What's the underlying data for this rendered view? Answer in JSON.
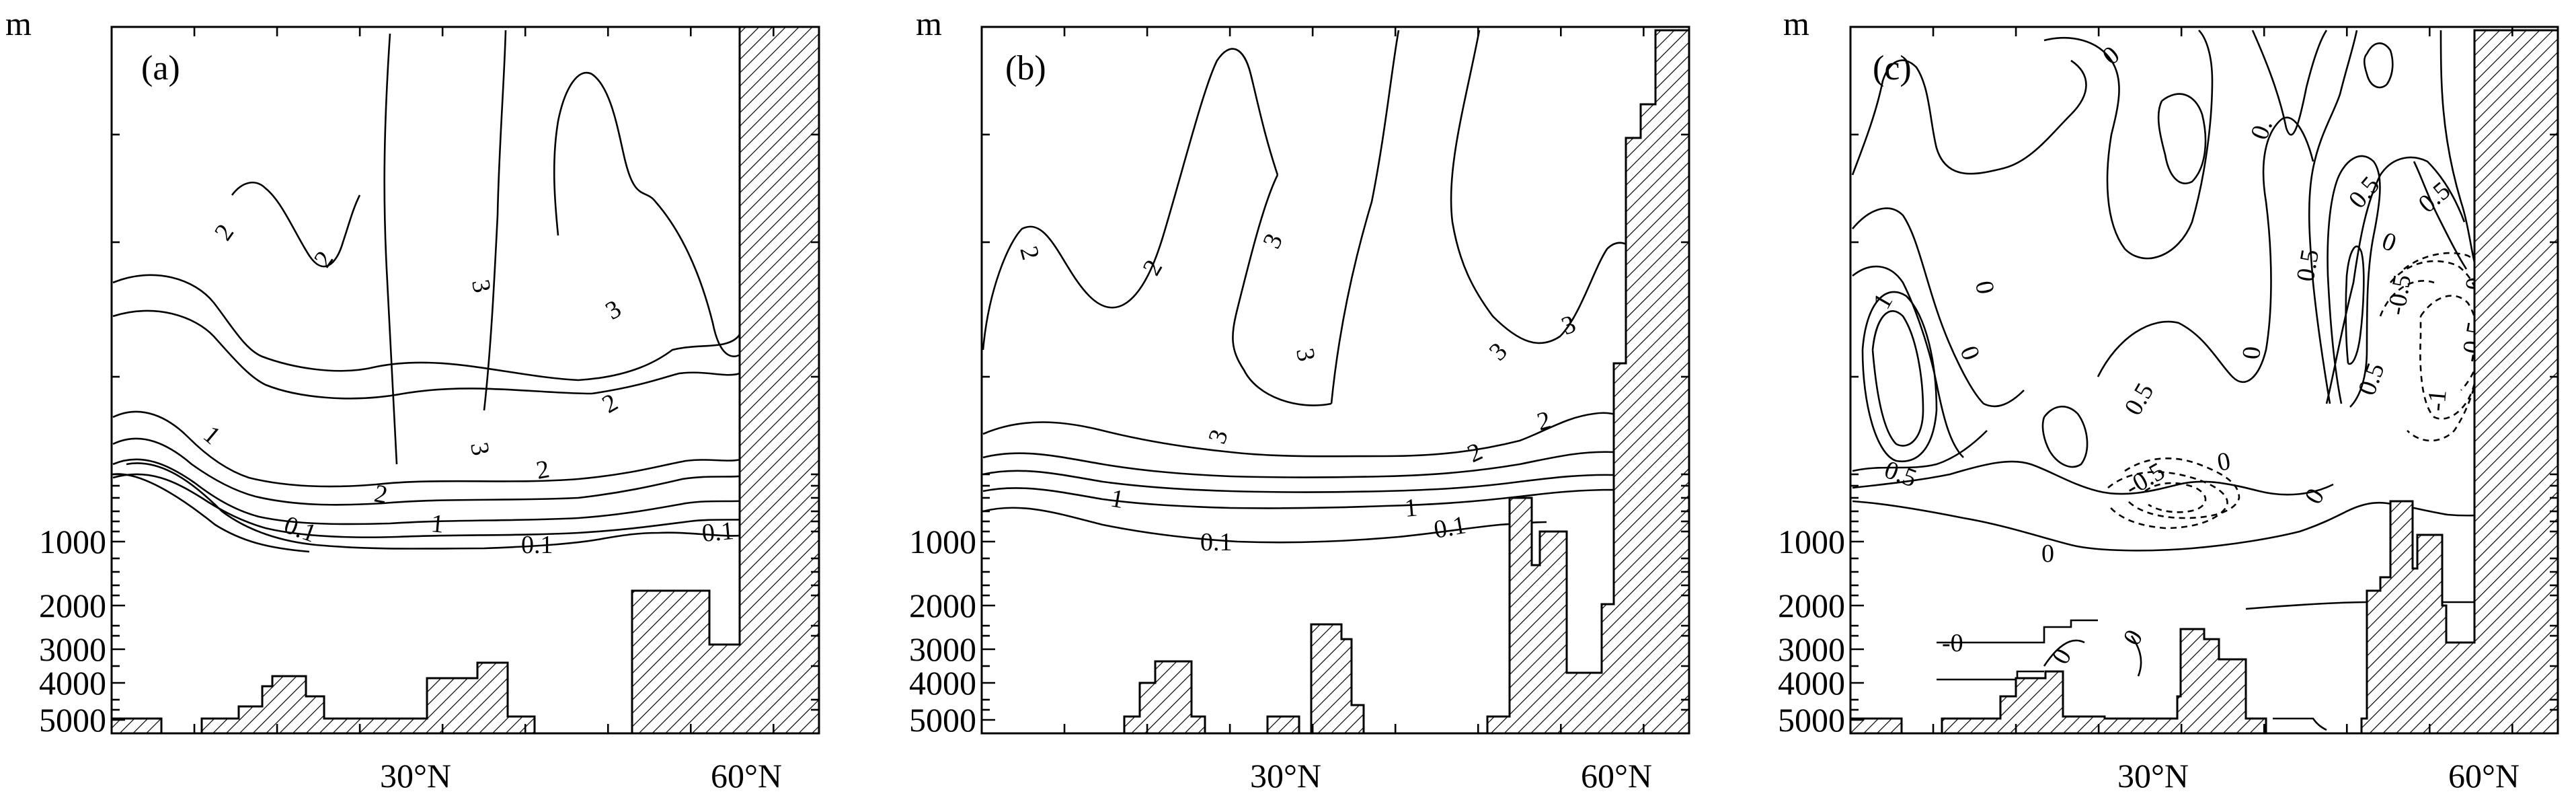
{
  "chart_data": [
    {
      "type": "contour",
      "panel_label": "(a)",
      "ylabel": "m",
      "y_ticks": [
        "1000",
        "2000",
        "3000",
        "4000",
        "5000"
      ],
      "x_ticks": [
        "30°N",
        "60°N"
      ],
      "contour_labels": [
        {
          "text": "2"
        },
        {
          "text": "2"
        },
        {
          "text": "3"
        },
        {
          "text": "3"
        },
        {
          "text": "3"
        },
        {
          "text": "1"
        },
        {
          "text": "2"
        },
        {
          "text": "2"
        },
        {
          "text": "2"
        },
        {
          "text": "1"
        },
        {
          "text": "0.1"
        },
        {
          "text": "0.1"
        },
        {
          "text": "0.1"
        }
      ]
    },
    {
      "type": "contour",
      "panel_label": "(b)",
      "ylabel": "m",
      "y_ticks": [
        "1000",
        "2000",
        "3000",
        "4000",
        "5000"
      ],
      "x_ticks": [
        "30°N",
        "60°N"
      ],
      "contour_labels": [
        {
          "text": "2"
        },
        {
          "text": "2"
        },
        {
          "text": "3"
        },
        {
          "text": "3"
        },
        {
          "text": "3"
        },
        {
          "text": "3"
        },
        {
          "text": "3"
        },
        {
          "text": "2"
        },
        {
          "text": "2"
        },
        {
          "text": "1"
        },
        {
          "text": "1"
        },
        {
          "text": "0.1"
        },
        {
          "text": "0.1"
        }
      ]
    },
    {
      "type": "contour",
      "panel_label": "(c)",
      "ylabel": "m",
      "y_ticks": [
        "1000",
        "2000",
        "3000",
        "4000",
        "5000"
      ],
      "x_ticks": [
        "30°N",
        "60°N"
      ],
      "contour_labels": [
        {
          "text": "0"
        },
        {
          "text": "0"
        },
        {
          "text": "0."
        },
        {
          "text": "0.5"
        },
        {
          "text": "0.5"
        },
        {
          "text": "0"
        },
        {
          "text": "1"
        },
        {
          "text": "0"
        },
        {
          "text": "0"
        },
        {
          "text": "0.5"
        },
        {
          "text": "0.5"
        },
        {
          "text": "0.5"
        },
        {
          "text": "0"
        },
        {
          "text": "-0.5"
        },
        {
          "text": "-1"
        },
        {
          "text": "-0.5"
        },
        {
          "text": "0"
        },
        {
          "text": "0.5"
        },
        {
          "text": "-0.5"
        },
        {
          "text": "0"
        },
        {
          "text": "0"
        },
        {
          "text": "-0"
        },
        {
          "text": "0"
        },
        {
          "text": "0"
        }
      ]
    }
  ]
}
